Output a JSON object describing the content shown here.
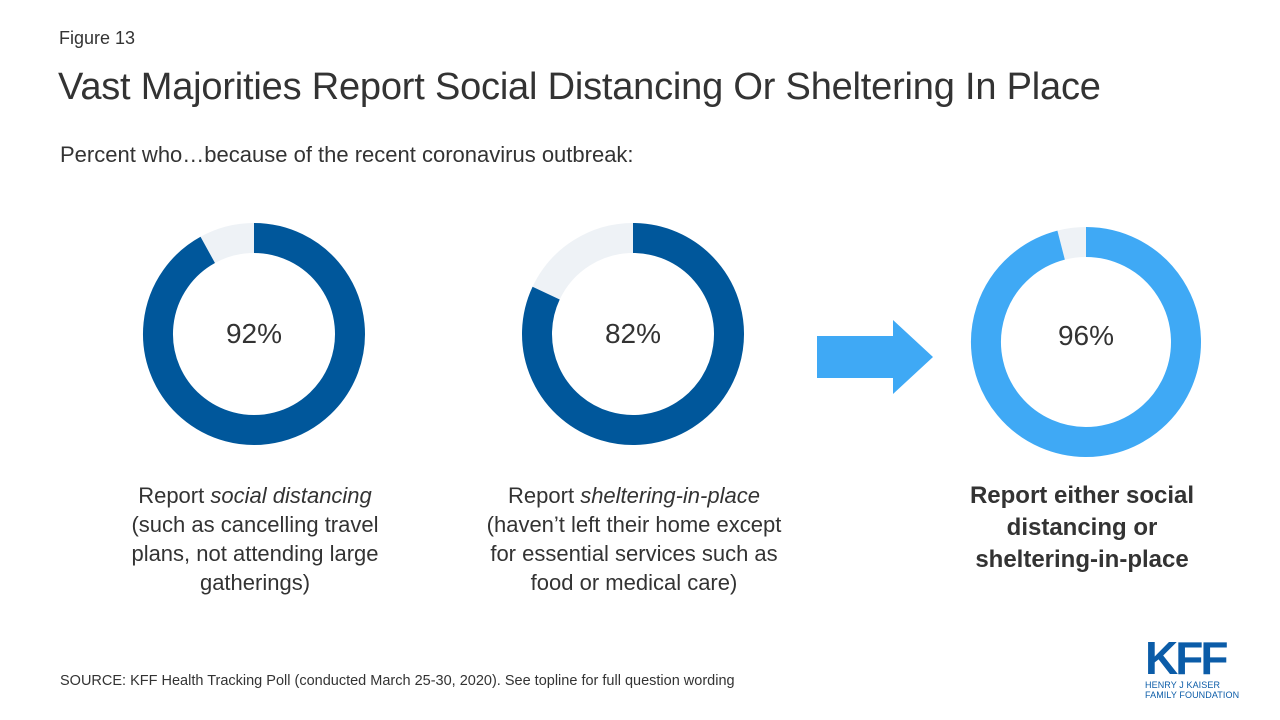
{
  "figure_label": "Figure 13",
  "title": "Vast Majorities Report Social Distancing Or Sheltering In Place",
  "subtitle": "Percent who…because of the recent coronavirus outbreak:",
  "chart_data": {
    "type": "donut",
    "series": [
      {
        "value": 92,
        "label": "92%",
        "caption_pre": "Report ",
        "caption_em": "social distancing",
        "caption_post": "(such as cancelling travel plans, not attending large gatherings)",
        "color": "#00579b"
      },
      {
        "value": 82,
        "label": "82%",
        "caption_pre": "Report ",
        "caption_em": "sheltering-in-place",
        "caption_post": "(haven’t left their home except for essential services such as food or medical care)",
        "color": "#00579b"
      },
      {
        "value": 96,
        "label": "96%",
        "caption": "Report either social distancing or sheltering-in-place",
        "color": "#3fa9f5"
      }
    ],
    "remainder_color": "#eef2f6"
  },
  "arrow_color": "#3fa9f5",
  "source": "SOURCE: KFF Health Tracking Poll (conducted March 25-30, 2020). See topline for full question wording",
  "logo": {
    "mark": "KFF",
    "line1": "HENRY J KAISER",
    "line2": "FAMILY FOUNDATION"
  }
}
